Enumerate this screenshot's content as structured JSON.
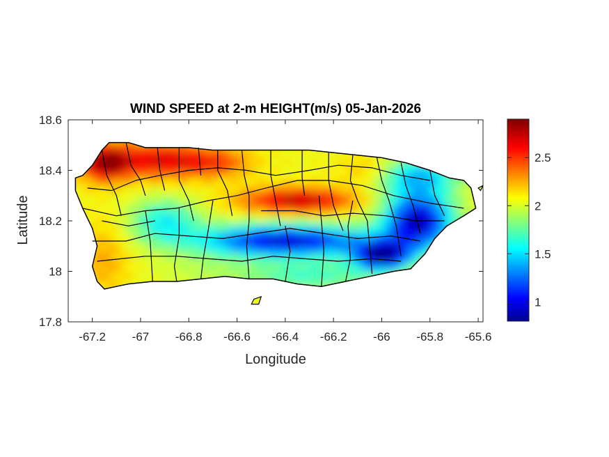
{
  "title": "WIND SPEED at 2-m HEIGHT(m/s) 05-Jan-2026",
  "xlabel": "Longitude",
  "ylabel": "Latitude",
  "xlim": [
    -67.3,
    -65.58
  ],
  "ylim": [
    17.8,
    18.6
  ],
  "x_ticks": [
    {
      "value": -67.2,
      "label": "-67.2"
    },
    {
      "value": -67.0,
      "label": "-67"
    },
    {
      "value": -66.8,
      "label": "-66.8"
    },
    {
      "value": -66.6,
      "label": "-66.6"
    },
    {
      "value": -66.4,
      "label": "-66.4"
    },
    {
      "value": -66.2,
      "label": "-66.2"
    },
    {
      "value": -66.0,
      "label": "-66"
    },
    {
      "value": -65.8,
      "label": "-65.8"
    },
    {
      "value": -65.6,
      "label": "-65.6"
    }
  ],
  "y_ticks": [
    {
      "value": 17.8,
      "label": "17.8"
    },
    {
      "value": 18.0,
      "label": "18"
    },
    {
      "value": 18.2,
      "label": "18.2"
    },
    {
      "value": 18.4,
      "label": "18.4"
    },
    {
      "value": 18.6,
      "label": "18.6"
    }
  ],
  "colorbar": {
    "colormap": "jet",
    "range": [
      0.8,
      2.9
    ],
    "ticks": [
      {
        "value": 1.0,
        "label": "1"
      },
      {
        "value": 1.5,
        "label": "1.5"
      },
      {
        "value": 2.0,
        "label": "2"
      },
      {
        "value": 2.5,
        "label": "2.5"
      }
    ]
  },
  "wind_field": {
    "base_value": 2.1,
    "features": [
      {
        "lon": -67.15,
        "lat": 18.43,
        "value": 2.85,
        "spread_lon": 0.07,
        "spread_lat": 0.05
      },
      {
        "lon": -66.92,
        "lat": 18.44,
        "value": 2.7,
        "spread_lon": 0.14,
        "spread_lat": 0.05
      },
      {
        "lon": -66.68,
        "lat": 18.43,
        "value": 2.45,
        "spread_lon": 0.1,
        "spread_lat": 0.04
      },
      {
        "lon": -66.35,
        "lat": 18.28,
        "value": 2.8,
        "spread_lon": 0.16,
        "spread_lat": 0.035
      },
      {
        "lon": -66.05,
        "lat": 18.4,
        "value": 2.3,
        "spread_lon": 0.08,
        "spread_lat": 0.04
      },
      {
        "lon": -66.4,
        "lat": 18.12,
        "value": 0.95,
        "spread_lon": 0.25,
        "spread_lat": 0.045
      },
      {
        "lon": -65.85,
        "lat": 18.2,
        "value": 0.9,
        "spread_lon": 0.1,
        "spread_lat": 0.08
      },
      {
        "lon": -66.0,
        "lat": 18.06,
        "value": 0.9,
        "spread_lon": 0.08,
        "spread_lat": 0.04
      },
      {
        "lon": -65.85,
        "lat": 18.38,
        "value": 1.5,
        "spread_lon": 0.12,
        "spread_lat": 0.05
      },
      {
        "lon": -66.9,
        "lat": 18.2,
        "value": 1.6,
        "spread_lon": 0.1,
        "spread_lat": 0.06
      },
      {
        "lon": -66.75,
        "lat": 18.0,
        "value": 2.0,
        "spread_lon": 0.15,
        "spread_lat": 0.05
      },
      {
        "lon": -67.15,
        "lat": 18.05,
        "value": 2.3,
        "spread_lon": 0.07,
        "spread_lat": 0.1
      },
      {
        "lon": -66.3,
        "lat": 17.98,
        "value": 1.7,
        "spread_lon": 0.2,
        "spread_lat": 0.04
      }
    ]
  },
  "island_outline": [
    [
      -67.27,
      18.37
    ],
    [
      -67.24,
      18.38
    ],
    [
      -67.2,
      18.42
    ],
    [
      -67.16,
      18.48
    ],
    [
      -67.13,
      18.51
    ],
    [
      -67.05,
      18.51
    ],
    [
      -66.98,
      18.49
    ],
    [
      -66.9,
      18.49
    ],
    [
      -66.8,
      18.49
    ],
    [
      -66.7,
      18.48
    ],
    [
      -66.6,
      18.48
    ],
    [
      -66.5,
      18.48
    ],
    [
      -66.4,
      18.48
    ],
    [
      -66.3,
      18.48
    ],
    [
      -66.2,
      18.47
    ],
    [
      -66.1,
      18.46
    ],
    [
      -66.0,
      18.45
    ],
    [
      -65.9,
      18.43
    ],
    [
      -65.8,
      18.4
    ],
    [
      -65.72,
      18.37
    ],
    [
      -65.66,
      18.36
    ],
    [
      -65.63,
      18.33
    ],
    [
      -65.61,
      18.25
    ],
    [
      -65.66,
      18.22
    ],
    [
      -65.73,
      18.18
    ],
    [
      -65.78,
      18.13
    ],
    [
      -65.82,
      18.07
    ],
    [
      -65.88,
      18.01
    ],
    [
      -65.95,
      18.0
    ],
    [
      -66.05,
      17.98
    ],
    [
      -66.15,
      17.96
    ],
    [
      -66.25,
      17.94
    ],
    [
      -66.35,
      17.95
    ],
    [
      -66.45,
      17.97
    ],
    [
      -66.55,
      17.97
    ],
    [
      -66.65,
      17.98
    ],
    [
      -66.75,
      17.97
    ],
    [
      -66.85,
      17.96
    ],
    [
      -66.95,
      17.96
    ],
    [
      -67.05,
      17.95
    ],
    [
      -67.1,
      17.94
    ],
    [
      -67.15,
      17.93
    ],
    [
      -67.18,
      17.96
    ],
    [
      -67.2,
      18.02
    ],
    [
      -67.18,
      18.1
    ],
    [
      -67.2,
      18.17
    ],
    [
      -67.24,
      18.25
    ],
    [
      -67.27,
      18.32
    ]
  ],
  "offshore_islets": [
    [
      [
        -66.53,
        17.89
      ],
      [
        -66.5,
        17.9
      ],
      [
        -66.51,
        17.87
      ],
      [
        -66.54,
        17.87
      ]
    ],
    [
      [
        -65.6,
        18.33
      ],
      [
        -65.58,
        18.34
      ],
      [
        -65.59,
        18.32
      ]
    ]
  ],
  "municipal_borders": [
    [
      [
        -67.16,
        18.48
      ],
      [
        -67.14,
        18.38
      ],
      [
        -67.1,
        18.3
      ],
      [
        -67.08,
        18.22
      ]
    ],
    [
      [
        -67.06,
        18.51
      ],
      [
        -67.04,
        18.42
      ],
      [
        -67.0,
        18.36
      ],
      [
        -66.98,
        18.3
      ]
    ],
    [
      [
        -66.93,
        18.49
      ],
      [
        -66.92,
        18.4
      ],
      [
        -66.9,
        18.32
      ]
    ],
    [
      [
        -66.84,
        18.49
      ],
      [
        -66.84,
        18.36
      ],
      [
        -66.8,
        18.28
      ],
      [
        -66.78,
        18.2
      ]
    ],
    [
      [
        -66.76,
        18.49
      ],
      [
        -66.75,
        18.38
      ]
    ],
    [
      [
        -66.68,
        18.48
      ],
      [
        -66.68,
        18.4
      ],
      [
        -66.64,
        18.32
      ],
      [
        -66.62,
        18.22
      ]
    ],
    [
      [
        -66.58,
        18.48
      ],
      [
        -66.57,
        18.38
      ],
      [
        -66.55,
        18.3
      ]
    ],
    [
      [
        -66.46,
        18.48
      ],
      [
        -66.46,
        18.38
      ],
      [
        -66.44,
        18.28
      ],
      [
        -66.42,
        18.18
      ]
    ],
    [
      [
        -66.33,
        18.48
      ],
      [
        -66.33,
        18.37
      ],
      [
        -66.32,
        18.3
      ]
    ],
    [
      [
        -66.22,
        18.47
      ],
      [
        -66.22,
        18.36
      ],
      [
        -66.2,
        18.26
      ],
      [
        -66.16,
        18.16
      ]
    ],
    [
      [
        -66.12,
        18.46
      ],
      [
        -66.13,
        18.36
      ],
      [
        -66.1,
        18.28
      ],
      [
        -66.06,
        18.2
      ],
      [
        -66.05,
        18.1
      ],
      [
        -66.04,
        17.99
      ]
    ],
    [
      [
        -66.02,
        18.45
      ],
      [
        -66.0,
        18.36
      ],
      [
        -65.97,
        18.28
      ],
      [
        -65.94,
        18.18
      ],
      [
        -65.92,
        18.06
      ]
    ],
    [
      [
        -65.92,
        18.43
      ],
      [
        -65.9,
        18.34
      ],
      [
        -65.87,
        18.26
      ],
      [
        -65.84,
        18.15
      ]
    ],
    [
      [
        -65.8,
        18.4
      ],
      [
        -65.78,
        18.3
      ],
      [
        -65.74,
        18.22
      ]
    ],
    [
      [
        -67.24,
        18.25
      ],
      [
        -67.1,
        18.22
      ],
      [
        -66.98,
        18.24
      ],
      [
        -66.85,
        18.25
      ],
      [
        -66.72,
        18.28
      ],
      [
        -66.6,
        18.3
      ],
      [
        -66.48,
        18.33
      ],
      [
        -66.35,
        18.36
      ],
      [
        -66.22,
        18.36
      ],
      [
        -66.08,
        18.34
      ],
      [
        -65.95,
        18.3
      ],
      [
        -65.8,
        18.27
      ],
      [
        -65.66,
        18.25
      ]
    ],
    [
      [
        -67.2,
        18.12
      ],
      [
        -67.06,
        18.12
      ],
      [
        -66.94,
        18.15
      ],
      [
        -66.8,
        18.14
      ],
      [
        -66.66,
        18.13
      ],
      [
        -66.52,
        18.15
      ],
      [
        -66.38,
        18.17
      ],
      [
        -66.24,
        18.15
      ],
      [
        -66.1,
        18.13
      ],
      [
        -65.96,
        18.14
      ],
      [
        -65.84,
        18.12
      ]
    ],
    [
      [
        -67.18,
        18.04
      ],
      [
        -67.08,
        18.05
      ],
      [
        -66.98,
        18.06
      ],
      [
        -66.85,
        18.06
      ],
      [
        -66.72,
        18.05
      ],
      [
        -66.58,
        18.04
      ],
      [
        -66.45,
        18.06
      ],
      [
        -66.32,
        18.05
      ],
      [
        -66.18,
        18.04
      ],
      [
        -66.04,
        18.05
      ],
      [
        -65.92,
        18.04
      ]
    ],
    [
      [
        -66.98,
        18.24
      ],
      [
        -66.96,
        18.12
      ],
      [
        -66.95,
        17.96
      ]
    ],
    [
      [
        -66.84,
        18.25
      ],
      [
        -66.84,
        18.14
      ],
      [
        -66.86,
        18.02
      ],
      [
        -66.85,
        17.96
      ]
    ],
    [
      [
        -66.7,
        18.28
      ],
      [
        -66.72,
        18.16
      ],
      [
        -66.74,
        18.05
      ],
      [
        -66.75,
        17.97
      ]
    ],
    [
      [
        -66.55,
        18.3
      ],
      [
        -66.55,
        18.2
      ],
      [
        -66.56,
        18.1
      ],
      [
        -66.55,
        17.97
      ]
    ],
    [
      [
        -66.4,
        18.18
      ],
      [
        -66.38,
        18.08
      ],
      [
        -66.4,
        17.96
      ]
    ],
    [
      [
        -66.26,
        18.3
      ],
      [
        -66.25,
        18.2
      ],
      [
        -66.24,
        18.08
      ],
      [
        -66.25,
        17.94
      ]
    ],
    [
      [
        -66.12,
        18.28
      ],
      [
        -66.14,
        18.18
      ],
      [
        -66.13,
        18.05
      ],
      [
        -66.15,
        17.96
      ]
    ],
    [
      [
        -67.22,
        18.33
      ],
      [
        -67.12,
        18.32
      ],
      [
        -67.02,
        18.36
      ],
      [
        -66.92,
        18.38
      ],
      [
        -66.8,
        18.4
      ],
      [
        -66.68,
        18.41
      ],
      [
        -66.56,
        18.4
      ],
      [
        -66.44,
        18.38
      ],
      [
        -66.3,
        18.4
      ],
      [
        -66.18,
        18.42
      ],
      [
        -66.04,
        18.41
      ],
      [
        -65.92,
        18.38
      ],
      [
        -65.8,
        18.36
      ]
    ],
    [
      [
        -67.16,
        18.2
      ],
      [
        -67.05,
        18.18
      ],
      [
        -66.94,
        18.2
      ]
    ],
    [
      [
        -66.5,
        18.24
      ],
      [
        -66.36,
        18.24
      ],
      [
        -66.24,
        18.22
      ],
      [
        -66.12,
        18.23
      ],
      [
        -65.98,
        18.22
      ],
      [
        -65.86,
        18.2
      ],
      [
        -65.74,
        18.2
      ]
    ]
  ]
}
